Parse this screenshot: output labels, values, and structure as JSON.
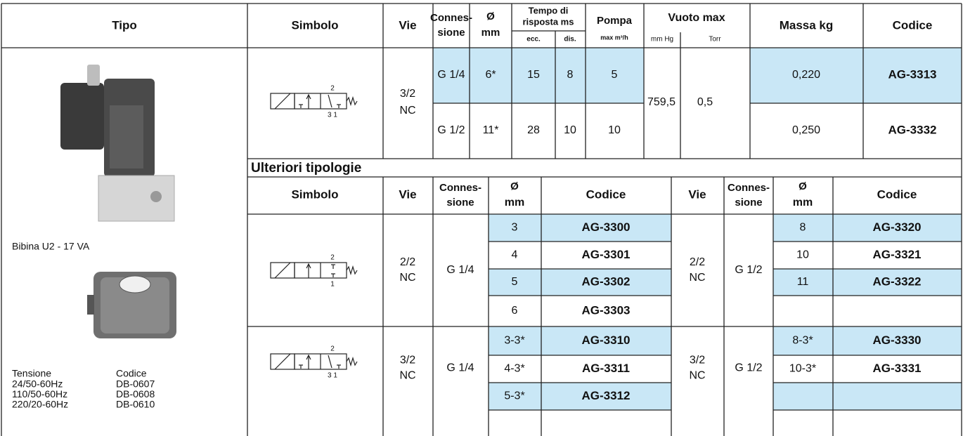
{
  "header": {
    "tipo": "Tipo",
    "simbolo": "Simbolo",
    "vie": "Vie",
    "connessione": [
      "Connes-",
      "sione"
    ],
    "diametro": [
      "Ø",
      "mm"
    ],
    "tempo": [
      "Tempo di",
      "risposta ms"
    ],
    "ecc": "ecc.",
    "dis": "dis.",
    "pompa": "Pompa",
    "pompa_unit": "max m³/h",
    "vuoto": "Vuoto max",
    "mm_hg": "mm Hg",
    "torr": "Torr",
    "massa": "Massa kg",
    "codice": "Codice"
  },
  "main": {
    "symbol": {
      "top": "2",
      "bottom": "3 1"
    },
    "vie": [
      "3/2",
      "NC"
    ],
    "mm_hg": "759,5",
    "torr": "0,5",
    "rows": [
      {
        "connessione": "G 1/4",
        "diametro": "6*",
        "ecc": "15",
        "dis": "8",
        "pompa": "5",
        "massa": "0,220",
        "codice": "AG-3313"
      },
      {
        "connessione": "G 1/2",
        "diametro": "11*",
        "ecc": "28",
        "dis": "10",
        "pompa": "10",
        "massa": "0,250",
        "codice": "AG-3332"
      }
    ]
  },
  "tipo": {
    "coil": "Bibina U2 - 17 VA",
    "voltage_header": [
      "Tensione",
      "Codice"
    ],
    "voltages": [
      [
        "24/50-60Hz",
        "DB-0607"
      ],
      [
        "110/50-60Hz",
        "DB-0608"
      ],
      [
        "220/20-60Hz",
        "DB-0610"
      ]
    ]
  },
  "section_title": "Ulteriori tipologie",
  "header2": {
    "simbolo": "Simbolo",
    "left": {
      "vie": "Vie",
      "connessione": [
        "Connes-",
        "sione"
      ],
      "diametro": [
        "Ø",
        "mm"
      ],
      "codice": "Codice"
    },
    "right": {
      "vie": "Vie",
      "connessione": [
        "Connes-",
        "sione"
      ],
      "diametro": [
        "Ø",
        "mm"
      ],
      "codice": "Codice"
    }
  },
  "groups": [
    {
      "symbol": {
        "top": "2",
        "bottom": "1"
      },
      "left": {
        "vie": [
          "2/2",
          "NC"
        ],
        "connessione": "G 1/4",
        "items": [
          {
            "diametro": "3",
            "codice": "AG-3300"
          },
          {
            "diametro": "4",
            "codice": "AG-3301"
          },
          {
            "diametro": "5",
            "codice": "AG-3302"
          },
          {
            "diametro": "6",
            "codice": "AG-3303"
          }
        ]
      },
      "right": {
        "vie": [
          "2/2",
          "NC"
        ],
        "connessione": "G 1/2",
        "items": [
          {
            "diametro": "8",
            "codice": "AG-3320"
          },
          {
            "diametro": "10",
            "codice": "AG-3321"
          },
          {
            "diametro": "11",
            "codice": "AG-3322"
          }
        ]
      }
    },
    {
      "symbol": {
        "top": "2",
        "bottom": "3 1"
      },
      "left": {
        "vie": [
          "3/2",
          "NC"
        ],
        "connessione": "G 1/4",
        "items": [
          {
            "diametro": "3-3*",
            "codice": "AG-3310"
          },
          {
            "diametro": "4-3*",
            "codice": "AG-3311"
          },
          {
            "diametro": "5-3*",
            "codice": "AG-3312"
          }
        ]
      },
      "right": {
        "vie": [
          "3/2",
          "NC"
        ],
        "connessione": "G 1/2",
        "items": [
          {
            "diametro": "8-3*",
            "codice": "AG-3330"
          },
          {
            "diametro": "10-3*",
            "codice": "AG-3331"
          }
        ]
      }
    }
  ]
}
